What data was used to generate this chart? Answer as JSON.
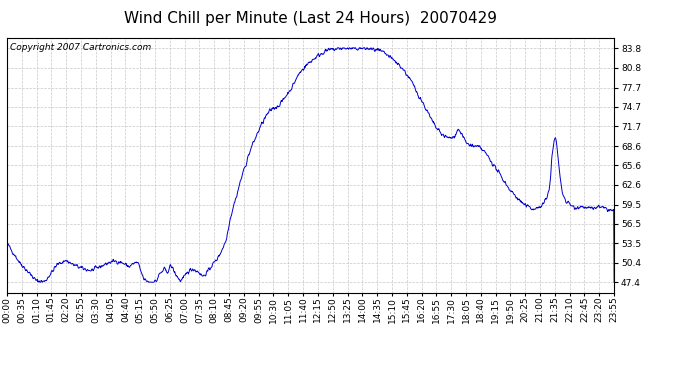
{
  "title": "Wind Chill per Minute (Last 24 Hours)  20070429",
  "copyright_text": "Copyright 2007 Cartronics.com",
  "line_color": "#0000CC",
  "background_color": "#ffffff",
  "grid_color": "#c8c8c8",
  "yticks": [
    47.4,
    50.4,
    53.5,
    56.5,
    59.5,
    62.6,
    65.6,
    68.6,
    71.7,
    74.7,
    77.7,
    80.8,
    83.8
  ],
  "ylim": [
    45.8,
    85.5
  ],
  "xtick_labels": [
    "00:00",
    "00:35",
    "01:10",
    "01:45",
    "02:20",
    "02:55",
    "03:30",
    "04:05",
    "04:40",
    "05:15",
    "05:50",
    "06:25",
    "07:00",
    "07:35",
    "08:10",
    "08:45",
    "09:20",
    "09:55",
    "10:30",
    "11:05",
    "11:40",
    "12:15",
    "12:50",
    "13:25",
    "14:00",
    "14:35",
    "15:10",
    "15:45",
    "16:20",
    "16:55",
    "17:30",
    "18:05",
    "18:40",
    "19:15",
    "19:50",
    "20:25",
    "21:00",
    "21:35",
    "22:10",
    "22:45",
    "23:20",
    "23:55"
  ],
  "title_fontsize": 11,
  "tick_fontsize": 6.5,
  "copyright_fontsize": 6.5,
  "keypoints": [
    [
      0,
      53.5
    ],
    [
      30,
      50.5
    ],
    [
      70,
      47.6
    ],
    [
      90,
      47.5
    ],
    [
      120,
      50.2
    ],
    [
      140,
      50.8
    ],
    [
      155,
      50.2
    ],
    [
      180,
      49.5
    ],
    [
      200,
      49.2
    ],
    [
      220,
      49.8
    ],
    [
      240,
      50.4
    ],
    [
      255,
      50.7
    ],
    [
      270,
      50.5
    ],
    [
      280,
      50.2
    ],
    [
      290,
      49.8
    ],
    [
      300,
      50.3
    ],
    [
      310,
      50.5
    ],
    [
      318,
      49.0
    ],
    [
      325,
      47.8
    ],
    [
      335,
      47.5
    ],
    [
      345,
      47.4
    ],
    [
      355,
      47.6
    ],
    [
      360,
      48.5
    ],
    [
      370,
      49.2
    ],
    [
      375,
      49.5
    ],
    [
      378,
      48.8
    ],
    [
      382,
      49.2
    ],
    [
      388,
      50.0
    ],
    [
      393,
      49.6
    ],
    [
      398,
      48.8
    ],
    [
      405,
      48.2
    ],
    [
      410,
      47.6
    ],
    [
      415,
      47.8
    ],
    [
      422,
      48.3
    ],
    [
      428,
      49.0
    ],
    [
      435,
      49.3
    ],
    [
      442,
      49.5
    ],
    [
      448,
      49.2
    ],
    [
      455,
      49.0
    ],
    [
      460,
      48.6
    ],
    [
      465,
      48.3
    ],
    [
      472,
      48.8
    ],
    [
      478,
      49.2
    ],
    [
      485,
      50.0
    ],
    [
      492,
      50.5
    ],
    [
      500,
      51.2
    ],
    [
      510,
      52.5
    ],
    [
      520,
      54.0
    ],
    [
      525,
      56.0
    ],
    [
      530,
      57.5
    ],
    [
      538,
      59.5
    ],
    [
      545,
      61.0
    ],
    [
      555,
      63.5
    ],
    [
      565,
      65.5
    ],
    [
      572,
      67.0
    ],
    [
      580,
      68.5
    ],
    [
      590,
      70.0
    ],
    [
      600,
      71.5
    ],
    [
      610,
      72.8
    ],
    [
      620,
      73.8
    ],
    [
      630,
      74.5
    ],
    [
      640,
      74.7
    ],
    [
      648,
      75.2
    ],
    [
      655,
      75.8
    ],
    [
      662,
      76.5
    ],
    [
      670,
      77.2
    ],
    [
      678,
      78.0
    ],
    [
      685,
      79.0
    ],
    [
      692,
      79.8
    ],
    [
      700,
      80.5
    ],
    [
      710,
      81.2
    ],
    [
      720,
      81.8
    ],
    [
      730,
      82.3
    ],
    [
      740,
      82.8
    ],
    [
      750,
      83.2
    ],
    [
      760,
      83.5
    ],
    [
      770,
      83.6
    ],
    [
      780,
      83.7
    ],
    [
      790,
      83.8
    ],
    [
      800,
      83.8
    ],
    [
      810,
      83.8
    ],
    [
      820,
      83.7
    ],
    [
      830,
      83.8
    ],
    [
      840,
      83.8
    ],
    [
      850,
      83.8
    ],
    [
      860,
      83.7
    ],
    [
      870,
      83.6
    ],
    [
      880,
      83.5
    ],
    [
      890,
      83.2
    ],
    [
      900,
      82.8
    ],
    [
      910,
      82.3
    ],
    [
      920,
      81.8
    ],
    [
      930,
      81.2
    ],
    [
      940,
      80.5
    ],
    [
      950,
      79.5
    ],
    [
      960,
      78.5
    ],
    [
      970,
      77.2
    ],
    [
      980,
      76.0
    ],
    [
      990,
      74.8
    ],
    [
      1000,
      73.5
    ],
    [
      1010,
      72.2
    ],
    [
      1020,
      71.2
    ],
    [
      1030,
      70.5
    ],
    [
      1040,
      70.0
    ],
    [
      1050,
      69.8
    ],
    [
      1060,
      70.0
    ],
    [
      1065,
      70.8
    ],
    [
      1070,
      71.2
    ],
    [
      1075,
      70.8
    ],
    [
      1080,
      70.2
    ],
    [
      1085,
      69.5
    ],
    [
      1090,
      69.0
    ],
    [
      1095,
      68.8
    ],
    [
      1100,
      68.7
    ],
    [
      1110,
      68.5
    ],
    [
      1120,
      68.4
    ],
    [
      1130,
      67.8
    ],
    [
      1140,
      67.0
    ],
    [
      1150,
      66.0
    ],
    [
      1160,
      65.0
    ],
    [
      1170,
      64.0
    ],
    [
      1180,
      63.0
    ],
    [
      1190,
      62.0
    ],
    [
      1200,
      61.2
    ],
    [
      1210,
      60.5
    ],
    [
      1220,
      59.8
    ],
    [
      1230,
      59.3
    ],
    [
      1240,
      59.0
    ],
    [
      1250,
      58.8
    ],
    [
      1260,
      59.0
    ],
    [
      1270,
      59.5
    ],
    [
      1280,
      60.5
    ],
    [
      1285,
      62.0
    ],
    [
      1288,
      63.5
    ],
    [
      1290,
      65.5
    ],
    [
      1292,
      67.0
    ],
    [
      1295,
      68.5
    ],
    [
      1297,
      69.5
    ],
    [
      1300,
      70.0
    ],
    [
      1303,
      69.0
    ],
    [
      1305,
      67.5
    ],
    [
      1308,
      65.5
    ],
    [
      1312,
      63.0
    ],
    [
      1318,
      61.0
    ],
    [
      1325,
      60.0
    ],
    [
      1335,
      59.5
    ],
    [
      1345,
      59.0
    ],
    [
      1360,
      59.2
    ],
    [
      1375,
      59.0
    ],
    [
      1390,
      58.8
    ],
    [
      1400,
      59.2
    ],
    [
      1410,
      59.0
    ],
    [
      1420,
      58.8
    ],
    [
      1430,
      58.6
    ],
    [
      1439,
      58.5
    ]
  ]
}
